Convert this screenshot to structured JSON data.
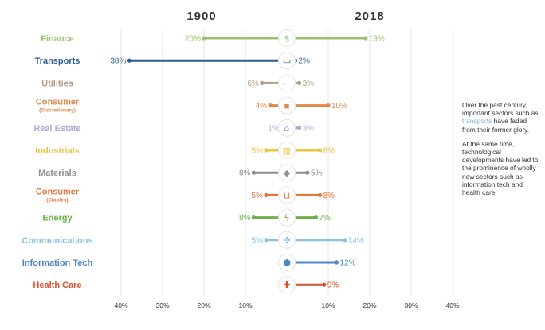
{
  "colors": {
    "grid": "#e6e6e6",
    "tick_text": "#333333"
  },
  "chart_data": {
    "type": "dumbbell",
    "left_header": "1900",
    "right_header": "2018",
    "x_ticks_left": [
      "40%",
      "30%",
      "20%",
      "10%"
    ],
    "x_ticks_right": [
      "10%",
      "20%",
      "30%",
      "40%"
    ],
    "xlim": [
      0,
      40
    ],
    "rows": [
      {
        "label": "Finance",
        "sub": "",
        "y1900": 20,
        "y2018": 19,
        "t1900": "20%",
        "t2018": "19%",
        "color": "#98c56b",
        "icon": "money-bag-icon",
        "glyph": "$"
      },
      {
        "label": "Transports",
        "sub": "",
        "y1900": 38,
        "y2018": 2,
        "t1900": "38%",
        "t2018": "2%",
        "color": "#2b5c96",
        "icon": "train-icon",
        "glyph": "▭"
      },
      {
        "label": "Utilities",
        "sub": "",
        "y1900": 6,
        "y2018": 3,
        "t1900": "6%",
        "t2018": "3%",
        "color": "#b49b86",
        "icon": "faucet-icon",
        "glyph": "⌐"
      },
      {
        "label": "Consumer",
        "sub": "(Discretionary)",
        "y1900": 4,
        "y2018": 10,
        "t1900": "4%",
        "t2018": "10%",
        "color": "#e08a4a",
        "icon": "shopping-bag-icon",
        "glyph": "▪"
      },
      {
        "label": "Real Estate",
        "sub": "",
        "y1900": 1,
        "y2018": 3,
        "t1900": "1%",
        "t2018": "3%",
        "color": "#b0a6dc",
        "icon": "house-icon",
        "glyph": "⌂"
      },
      {
        "label": "Industrials",
        "sub": "",
        "y1900": 5,
        "y2018": 8,
        "t1900": "5%",
        "t2018": "8%",
        "color": "#ecc53f",
        "icon": "factory-icon",
        "glyph": "▥"
      },
      {
        "label": "Materials",
        "sub": "",
        "y1900": 8,
        "y2018": 5,
        "t1900": "8%",
        "t2018": "5%",
        "color": "#8f8f8f",
        "icon": "diamond-icon",
        "glyph": "◆"
      },
      {
        "label": "Consumer",
        "sub": "(Staples)",
        "y1900": 5,
        "y2018": 8,
        "t1900": "5%",
        "t2018": "8%",
        "color": "#e8753c",
        "icon": "cart-icon",
        "glyph": "⊔"
      },
      {
        "label": "Energy",
        "sub": "",
        "y1900": 8,
        "y2018": 7,
        "t1900": "8%",
        "t2018": "7%",
        "color": "#6cb14a",
        "icon": "lightning-icon",
        "glyph": "ϟ"
      },
      {
        "label": "Communications",
        "sub": "",
        "y1900": 5,
        "y2018": 14,
        "t1900": "5%",
        "t2018": "14%",
        "color": "#84c2e8",
        "icon": "network-icon",
        "glyph": "✣"
      },
      {
        "label": "Information Tech",
        "sub": "",
        "y1900": 0,
        "y2018": 12,
        "t1900": "",
        "t2018": "12%",
        "color": "#4d86c6",
        "icon": "chip-icon",
        "glyph": "⬢"
      },
      {
        "label": "Health Care",
        "sub": "",
        "y1900": 0,
        "y2018": 9,
        "t1900": "",
        "t2018": "9%",
        "color": "#d8512f",
        "icon": "medical-cross-icon",
        "glyph": "✚"
      }
    ]
  },
  "notes": {
    "p1_before": "Over the past century, important sectors such as ",
    "p1_highlight": "transports",
    "p1_after": " have faded from their former glory.",
    "p2": "At the same time, technological developments have led to the prominence of wholly new sectors such as information tech and health care."
  }
}
